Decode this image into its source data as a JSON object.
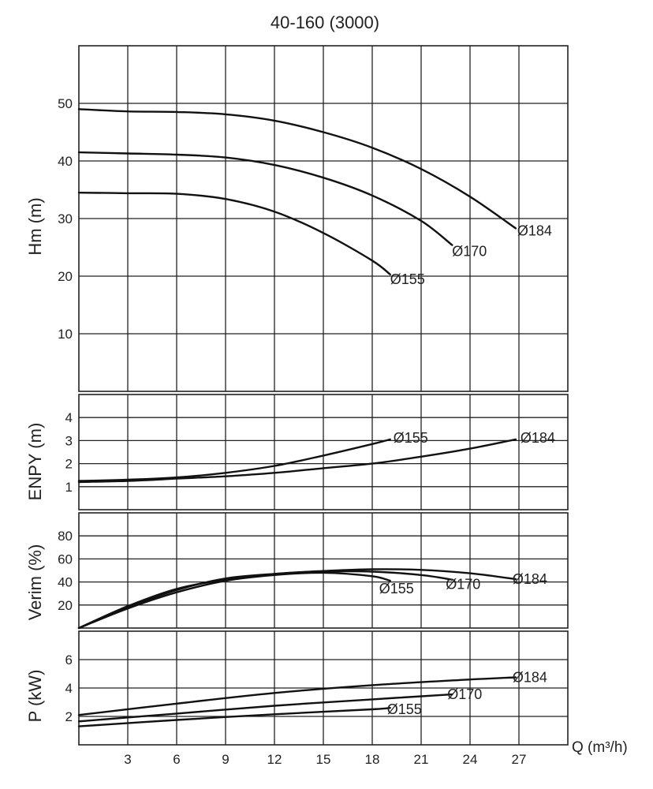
{
  "chart_data": {
    "type": "line",
    "title": "40-160 (3000)",
    "xlabel": "Q (m³/h)",
    "xlim": [
      0,
      30
    ],
    "xticks": [
      3,
      6,
      9,
      12,
      15,
      18,
      21,
      24,
      27
    ],
    "grid": true,
    "panels": [
      {
        "name": "head",
        "ylabel": "Hm (m)",
        "ylim": [
          0,
          60
        ],
        "yticks": [
          10,
          20,
          30,
          40,
          50
        ],
        "series": [
          {
            "name": "Ø184",
            "x": [
              0,
              3,
              6,
              9,
              12,
              15,
              18,
              21,
              24,
              26.8
            ],
            "y": [
              49,
              48.6,
              48.5,
              48.1,
              47,
              45,
              42.3,
              38.6,
              33.8,
              28.3
            ]
          },
          {
            "name": "Ø170",
            "x": [
              0,
              3,
              6,
              9,
              12,
              15,
              18,
              21,
              22.9
            ],
            "y": [
              41.5,
              41.3,
              41.1,
              40.6,
              39.3,
              37.1,
              34,
              29.6,
              25.4
            ]
          },
          {
            "name": "Ø155",
            "x": [
              0,
              3,
              6,
              9,
              12,
              15,
              18,
              19.1
            ],
            "y": [
              34.5,
              34.4,
              34.3,
              33.4,
              31.2,
              27.5,
              22.7,
              20.3
            ]
          }
        ]
      },
      {
        "name": "npsh",
        "ylabel": "ENPY (m)",
        "ylim": [
          0,
          5
        ],
        "yticks": [
          1,
          2,
          3,
          4
        ],
        "series": [
          {
            "name": "Ø155",
            "x": [
              0,
              3,
              6,
              9,
              12,
              15,
              18,
              19.1
            ],
            "y": [
              1.25,
              1.3,
              1.4,
              1.6,
              1.9,
              2.35,
              2.85,
              3.05
            ]
          },
          {
            "name": "Ø184",
            "x": [
              0,
              3,
              6,
              9,
              12,
              15,
              18,
              21,
              24,
              26.8
            ],
            "y": [
              1.2,
              1.25,
              1.35,
              1.45,
              1.6,
              1.8,
              2.0,
              2.3,
              2.65,
              3.05
            ]
          }
        ]
      },
      {
        "name": "efficiency",
        "ylabel": "Verim (%)",
        "ylim": [
          0,
          100
        ],
        "yticks": [
          20,
          40,
          60,
          80
        ],
        "series": [
          {
            "name": "Ø155",
            "x": [
              0,
              3,
              6,
              9,
              12,
              15,
              18,
              19.1
            ],
            "y": [
              0,
              17,
              31,
              41,
              46,
              48,
              45,
              41
            ]
          },
          {
            "name": "Ø170",
            "x": [
              0,
              3,
              6,
              9,
              12,
              15,
              18,
              21,
              22.9
            ],
            "y": [
              0,
              18,
              33,
              43,
              47,
              49,
              49,
              46,
              42
            ]
          },
          {
            "name": "Ø184",
            "x": [
              0,
              3,
              6,
              9,
              12,
              15,
              18,
              21,
              24,
              26.8
            ],
            "y": [
              0,
              19,
              34,
              42,
              47,
              49.5,
              51,
              50.5,
              47.5,
              42.5
            ]
          }
        ]
      },
      {
        "name": "power",
        "ylabel": "P (kW)",
        "ylim": [
          0,
          8
        ],
        "yticks": [
          2,
          4,
          6
        ],
        "series": [
          {
            "name": "Ø184",
            "x": [
              0,
              6,
              12,
              18,
              24,
              26.8
            ],
            "y": [
              2.1,
              2.9,
              3.65,
              4.2,
              4.6,
              4.75
            ]
          },
          {
            "name": "Ø170",
            "x": [
              0,
              6,
              12,
              18,
              22.9
            ],
            "y": [
              1.65,
              2.2,
              2.75,
              3.2,
              3.55
            ]
          },
          {
            "name": "Ø155",
            "x": [
              0,
              6,
              12,
              18,
              19.1
            ],
            "y": [
              1.3,
              1.75,
              2.15,
              2.5,
              2.6
            ]
          }
        ]
      }
    ],
    "annotations": [
      {
        "panel": "head",
        "text": "Ø184",
        "x": 26.8,
        "y": 28.3
      },
      {
        "panel": "head",
        "text": "Ø170",
        "x": 22.9,
        "y": 25.4
      },
      {
        "panel": "head",
        "text": "Ø155",
        "x": 19.1,
        "y": 20.3
      },
      {
        "panel": "npsh",
        "text": "Ø155",
        "x": 19.1,
        "y": 3.05
      },
      {
        "panel": "npsh",
        "text": "Ø184",
        "x": 26.8,
        "y": 3.05
      },
      {
        "panel": "efficiency",
        "text": "Ø155",
        "x": 19.1,
        "y": 41
      },
      {
        "panel": "efficiency",
        "text": "Ø170",
        "x": 22.9,
        "y": 42
      },
      {
        "panel": "efficiency",
        "text": "Ø184",
        "x": 26.8,
        "y": 42.5
      },
      {
        "panel": "power",
        "text": "Ø184",
        "x": 26.8,
        "y": 4.75
      },
      {
        "panel": "power",
        "text": "Ø170",
        "x": 22.9,
        "y": 3.55
      },
      {
        "panel": "power",
        "text": "Ø155",
        "x": 19.1,
        "y": 2.6
      }
    ]
  }
}
